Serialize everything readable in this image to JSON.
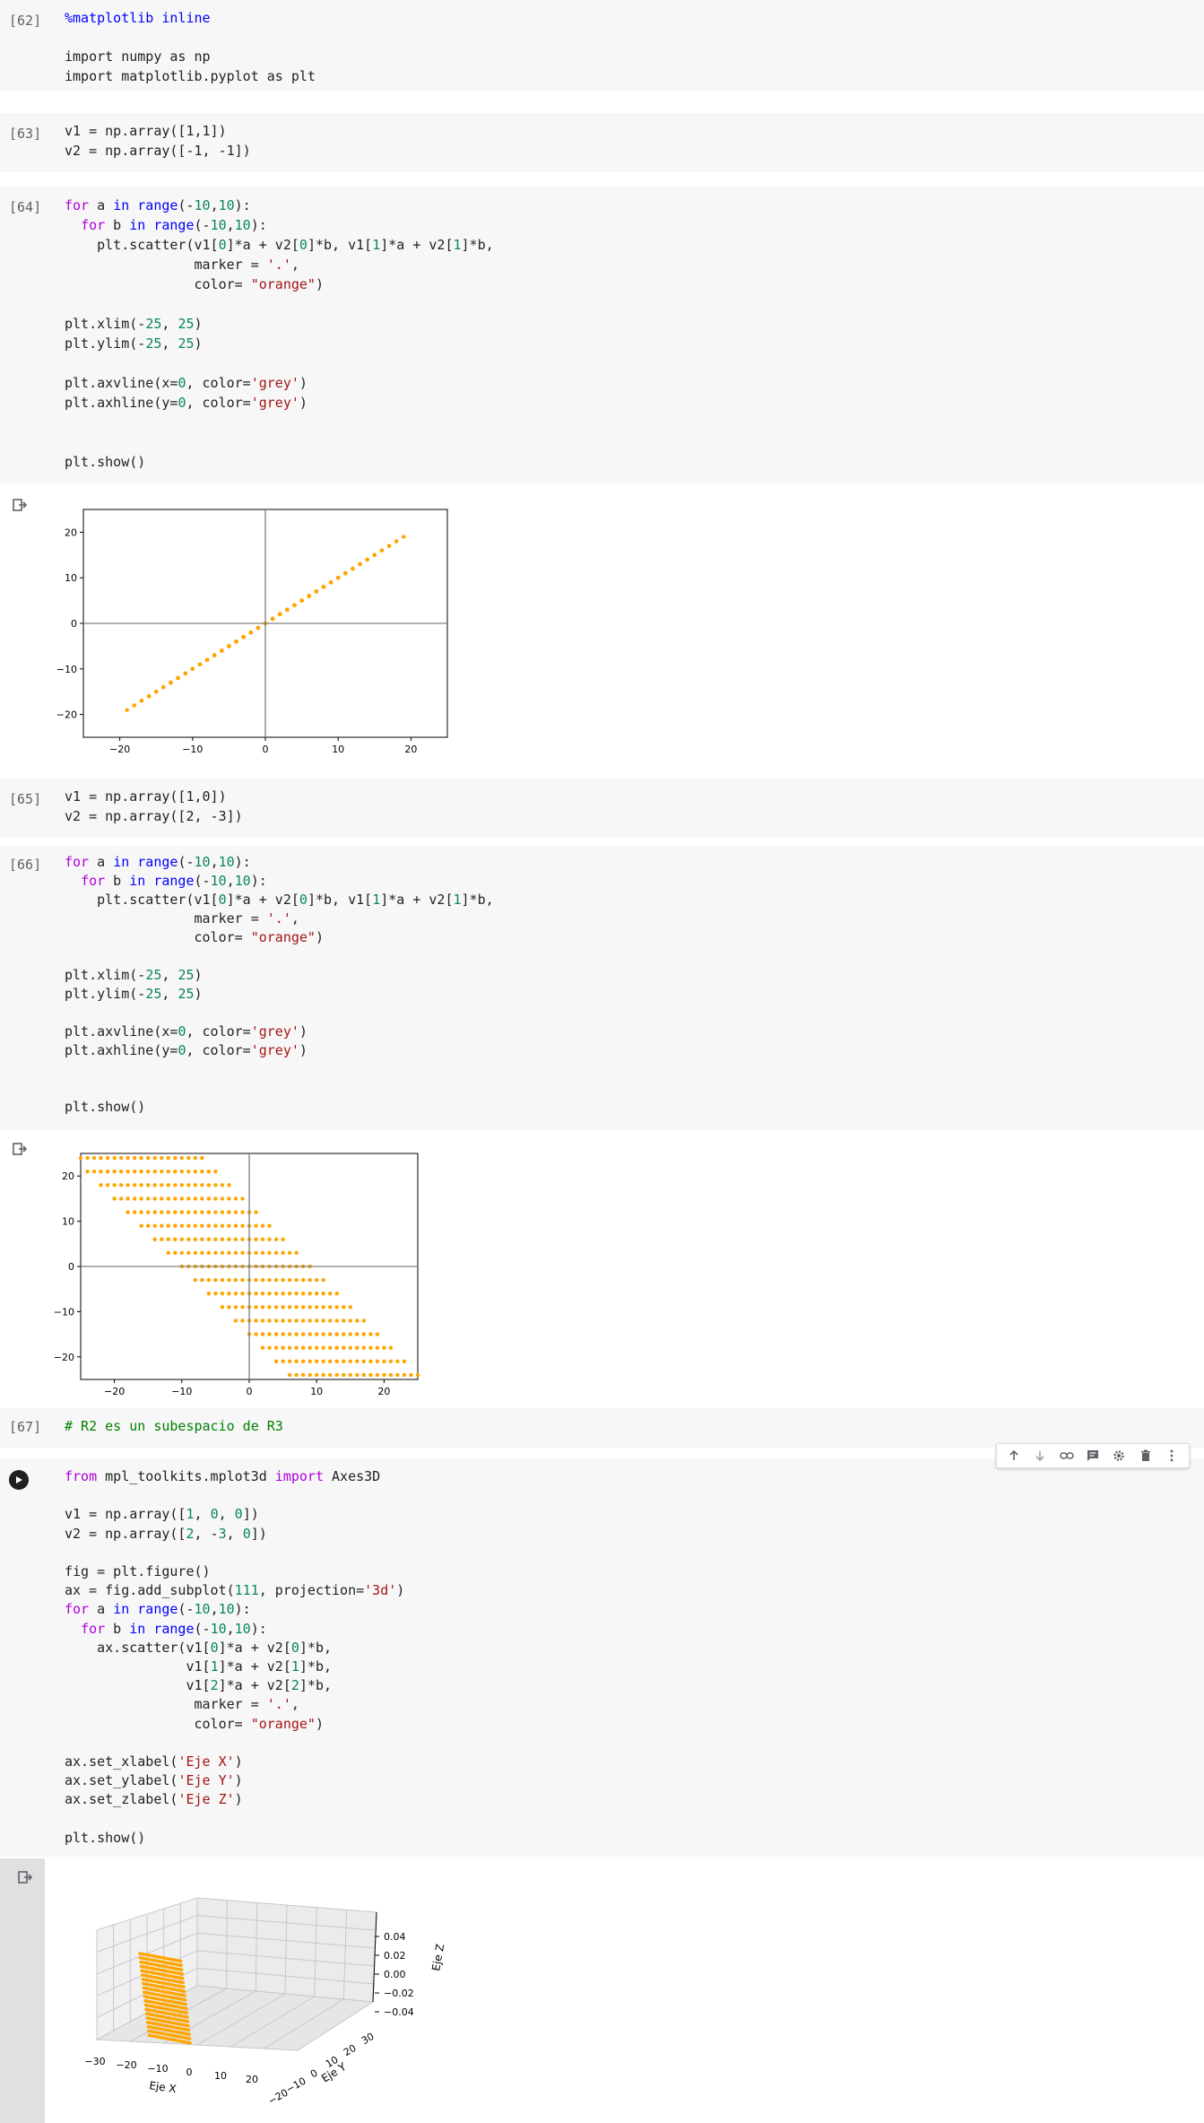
{
  "cells": [
    {
      "id": "c62",
      "exec": "[62]",
      "lines": [
        "%matplotlib inline",
        "",
        "import numpy as np",
        "import matplotlib.pyplot as plt"
      ]
    },
    {
      "id": "c63",
      "exec": "[63]",
      "lines": [
        "v1 = np.array([1,1])",
        "v2 = np.array([-1, -1])"
      ]
    },
    {
      "id": "c64",
      "exec": "[64]",
      "lines": [
        "for a in range(-10,10):",
        "  for b in range(-10,10):",
        "    plt.scatter(v1[0]*a + v2[0]*b, v1[1]*a + v2[1]*b,",
        "                marker = '.',",
        "                color= \"orange\")",
        "",
        "plt.xlim(-25, 25)",
        "plt.ylim(-25, 25)",
        "",
        "plt.axvline(x=0, color='grey')",
        "plt.axhline(y=0, color='grey')",
        "",
        "",
        "plt.show()"
      ]
    },
    {
      "id": "c65",
      "exec": "[65]",
      "lines": [
        "v1 = np.array([1,0])",
        "v2 = np.array([2, -3])"
      ]
    },
    {
      "id": "c66",
      "exec": "[66]",
      "lines": [
        "for a in range(-10,10):",
        "  for b in range(-10,10):",
        "    plt.scatter(v1[0]*a + v2[0]*b, v1[1]*a + v2[1]*b,",
        "                marker = '.',",
        "                color= \"orange\")",
        "",
        "plt.xlim(-25, 25)",
        "plt.ylim(-25, 25)",
        "",
        "plt.axvline(x=0, color='grey')",
        "plt.axhline(y=0, color='grey')",
        "",
        "",
        "plt.show()"
      ]
    },
    {
      "id": "c67",
      "exec": "[67]",
      "lines": [
        "# R2 es un subespacio de R3"
      ]
    },
    {
      "id": "c68",
      "exec": "",
      "lines": [
        "from mpl_toolkits.mplot3d import Axes3D",
        "",
        "v1 = np.array([1, 0, 0])",
        "v2 = np.array([2, -3, 0])",
        "",
        "fig = plt.figure()",
        "ax = fig.add_subplot(111, projection='3d')",
        "for a in range(-10,10):",
        "  for b in range(-10,10):",
        "    ax.scatter(v1[0]*a + v2[0]*b,",
        "               v1[1]*a + v2[1]*b,",
        "               v1[2]*a + v2[2]*b,",
        "                marker = '.',",
        "                color= \"orange\")",
        "",
        "ax.set_xlabel('Eje X')",
        "ax.set_ylabel('Eje Y')",
        "ax.set_zlabel('Eje Z')",
        "",
        "plt.show()"
      ]
    }
  ],
  "toolbar": [
    "move-up-icon",
    "move-down-icon",
    "link-icon",
    "comment-icon",
    "settings-icon",
    "delete-icon",
    "more-icon"
  ],
  "colors": {
    "points": "#ffa500",
    "axis_line": "#808080"
  },
  "chart_data": [
    {
      "type": "scatter",
      "title": "",
      "xlabel": "",
      "ylabel": "",
      "xlim": [
        -25,
        25
      ],
      "ylim": [
        -25,
        25
      ],
      "xticks": [
        -20,
        -10,
        0,
        10,
        20
      ],
      "yticks": [
        -20,
        -10,
        0,
        10,
        20
      ],
      "tick_labels_x": [
        "−20",
        "−10",
        "0",
        "10",
        "20"
      ],
      "tick_labels_y": [
        "−20",
        "−10",
        "0",
        "10",
        "20"
      ],
      "vectors": {
        "v1": [
          1,
          1
        ],
        "v2": [
          -1,
          -1
        ]
      },
      "range_a": [
        -10,
        10
      ],
      "range_b": [
        -10,
        10
      ],
      "point_color": "orange",
      "axvline": 0,
      "axhline": 0
    },
    {
      "type": "scatter",
      "title": "",
      "xlabel": "",
      "ylabel": "",
      "xlim": [
        -25,
        25
      ],
      "ylim": [
        -25,
        25
      ],
      "xticks": [
        -20,
        -10,
        0,
        10,
        20
      ],
      "yticks": [
        -20,
        -10,
        0,
        10,
        20
      ],
      "tick_labels_x": [
        "−20",
        "−10",
        "0",
        "10",
        "20"
      ],
      "tick_labels_y": [
        "−20",
        "−10",
        "0",
        "10",
        "20"
      ],
      "vectors": {
        "v1": [
          1,
          0
        ],
        "v2": [
          2,
          -3
        ]
      },
      "range_a": [
        -10,
        10
      ],
      "range_b": [
        -10,
        10
      ],
      "point_color": "orange",
      "axvline": 0,
      "axhline": 0
    },
    {
      "type": "scatter",
      "projection": "3d",
      "xlabel": "Eje X",
      "ylabel": "Eje Y",
      "zlabel": "Eje Z",
      "tick_labels_x": [
        "−30",
        "−20",
        "−10",
        "0",
        "10",
        "20"
      ],
      "tick_labels_y": [
        "30",
        "20",
        "10",
        "0",
        "−10",
        "−20"
      ],
      "tick_labels_z": [
        "0.04",
        "0.02",
        "0.00",
        "−0.02",
        "−0.04"
      ],
      "vectors": {
        "v1": [
          1,
          0,
          0
        ],
        "v2": [
          2,
          -3,
          0
        ]
      },
      "range_a": [
        -10,
        10
      ],
      "range_b": [
        -10,
        10
      ],
      "point_color": "orange"
    }
  ]
}
